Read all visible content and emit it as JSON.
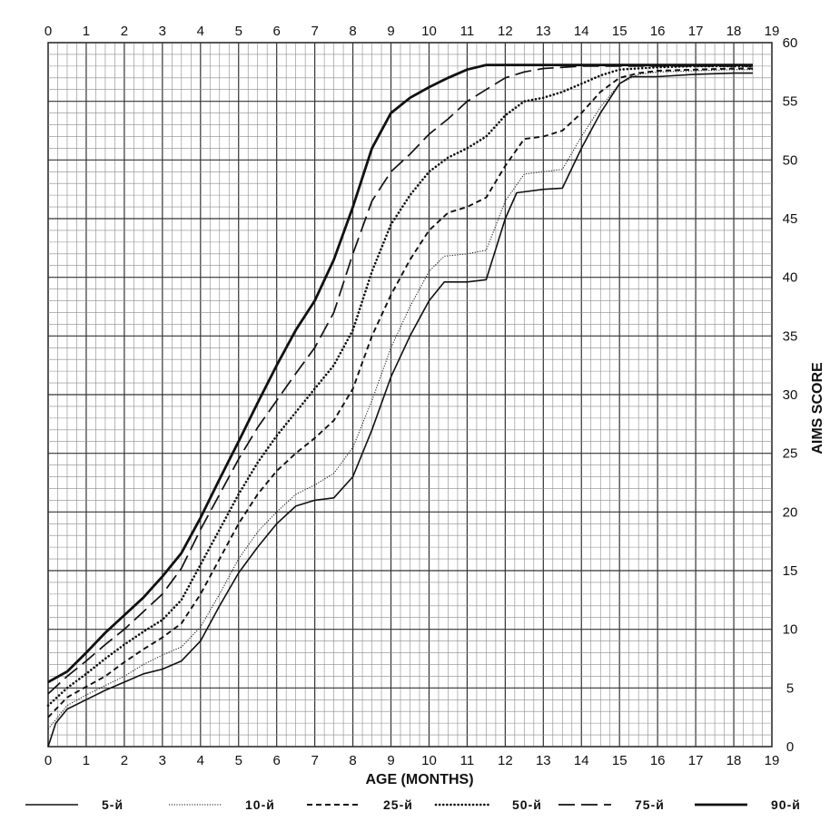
{
  "chart_data": {
    "type": "line",
    "xlabel": "AGE (MONTHS)",
    "ylabel": "AIMS SCORE",
    "xlim": [
      0,
      19
    ],
    "ylim": [
      0,
      60
    ],
    "x_ticks": [
      0,
      1,
      2,
      3,
      4,
      5,
      6,
      7,
      8,
      9,
      10,
      11,
      12,
      13,
      14,
      15,
      16,
      17,
      18,
      19
    ],
    "y_ticks": [
      0,
      5,
      10,
      15,
      20,
      25,
      30,
      35,
      40,
      45,
      50,
      55,
      60
    ],
    "grid": true,
    "legend_position": "bottom",
    "series": [
      {
        "name": "5-й",
        "style": "solid-thin",
        "points": [
          [
            0,
            0
          ],
          [
            0.2,
            2
          ],
          [
            0.5,
            3.2
          ],
          [
            1,
            4
          ],
          [
            1.5,
            4.8
          ],
          [
            2,
            5.5
          ],
          [
            2.5,
            6.2
          ],
          [
            3,
            6.6
          ],
          [
            3.5,
            7.3
          ],
          [
            4,
            9
          ],
          [
            4.5,
            12
          ],
          [
            5,
            14.8
          ],
          [
            5.5,
            17
          ],
          [
            6,
            19
          ],
          [
            6.5,
            20.5
          ],
          [
            7,
            21
          ],
          [
            7.5,
            21.2
          ],
          [
            8,
            23
          ],
          [
            8.5,
            27
          ],
          [
            9,
            31.5
          ],
          [
            9.5,
            35
          ],
          [
            10,
            38
          ],
          [
            10.4,
            39.6
          ],
          [
            11,
            39.6
          ],
          [
            11.5,
            39.8
          ],
          [
            12,
            45
          ],
          [
            12.3,
            47.2
          ],
          [
            13,
            47.5
          ],
          [
            13.5,
            47.6
          ],
          [
            14,
            51
          ],
          [
            14.5,
            54
          ],
          [
            15,
            56.5
          ],
          [
            15.3,
            57.1
          ],
          [
            16,
            57.1
          ],
          [
            17,
            57.3
          ],
          [
            18,
            57.4
          ],
          [
            18.5,
            57.4
          ]
        ]
      },
      {
        "name": "10-й",
        "style": "dotted-fine",
        "points": [
          [
            0,
            1.5
          ],
          [
            0.5,
            3.5
          ],
          [
            1,
            4.4
          ],
          [
            1.5,
            5.2
          ],
          [
            2,
            6
          ],
          [
            2.5,
            7
          ],
          [
            3,
            7.8
          ],
          [
            3.5,
            8.5
          ],
          [
            4,
            10.2
          ],
          [
            4.5,
            13
          ],
          [
            5,
            16
          ],
          [
            5.5,
            18.3
          ],
          [
            6,
            20
          ],
          [
            6.5,
            21.5
          ],
          [
            7,
            22.3
          ],
          [
            7.5,
            23.3
          ],
          [
            8,
            25.5
          ],
          [
            8.5,
            29.5
          ],
          [
            9,
            34
          ],
          [
            9.5,
            37.5
          ],
          [
            10,
            40.5
          ],
          [
            10.4,
            41.8
          ],
          [
            11,
            42
          ],
          [
            11.5,
            42.3
          ],
          [
            12,
            46.5
          ],
          [
            12.5,
            48.8
          ],
          [
            13,
            49
          ],
          [
            13.5,
            49.2
          ],
          [
            14,
            52
          ],
          [
            14.5,
            54.5
          ],
          [
            15,
            56.5
          ],
          [
            15.5,
            57.3
          ],
          [
            16,
            57.5
          ],
          [
            17,
            57.6
          ],
          [
            18,
            57.7
          ],
          [
            18.5,
            57.7
          ]
        ]
      },
      {
        "name": "25-й",
        "style": "dashed-short",
        "points": [
          [
            0,
            2.5
          ],
          [
            0.5,
            4.2
          ],
          [
            1,
            5.1
          ],
          [
            1.5,
            6
          ],
          [
            2,
            7.2
          ],
          [
            2.5,
            8.3
          ],
          [
            3,
            9.3
          ],
          [
            3.5,
            10.5
          ],
          [
            4,
            13
          ],
          [
            4.5,
            16
          ],
          [
            5,
            19
          ],
          [
            5.5,
            21.5
          ],
          [
            6,
            23.5
          ],
          [
            6.5,
            25
          ],
          [
            7,
            26.3
          ],
          [
            7.5,
            27.8
          ],
          [
            8,
            30.5
          ],
          [
            8.5,
            35
          ],
          [
            9,
            38.5
          ],
          [
            9.5,
            41.5
          ],
          [
            10,
            44
          ],
          [
            10.5,
            45.5
          ],
          [
            11,
            46
          ],
          [
            11.5,
            46.8
          ],
          [
            12,
            49.5
          ],
          [
            12.5,
            51.8
          ],
          [
            13,
            52
          ],
          [
            13.5,
            52.5
          ],
          [
            14,
            54
          ],
          [
            14.5,
            55.8
          ],
          [
            15,
            57
          ],
          [
            15.5,
            57.4
          ],
          [
            16,
            57.6
          ],
          [
            17,
            57.7
          ],
          [
            18,
            57.8
          ],
          [
            18.5,
            57.8
          ]
        ]
      },
      {
        "name": "50-й",
        "style": "dotted-bold",
        "points": [
          [
            0,
            3.5
          ],
          [
            0.5,
            5
          ],
          [
            1,
            6.2
          ],
          [
            1.5,
            7.5
          ],
          [
            2,
            8.7
          ],
          [
            2.5,
            9.8
          ],
          [
            3,
            10.8
          ],
          [
            3.5,
            12.5
          ],
          [
            4,
            15.5
          ],
          [
            4.5,
            18.5
          ],
          [
            5,
            21.5
          ],
          [
            5.5,
            24.2
          ],
          [
            6,
            26.5
          ],
          [
            6.5,
            28.5
          ],
          [
            7,
            30.5
          ],
          [
            7.5,
            32.5
          ],
          [
            8,
            35.5
          ],
          [
            8.5,
            40.5
          ],
          [
            9,
            44.5
          ],
          [
            9.5,
            47
          ],
          [
            10,
            49
          ],
          [
            10.5,
            50.2
          ],
          [
            11,
            51
          ],
          [
            11.5,
            52
          ],
          [
            12,
            53.8
          ],
          [
            12.5,
            55
          ],
          [
            13,
            55.3
          ],
          [
            13.5,
            55.8
          ],
          [
            14,
            56.5
          ],
          [
            14.5,
            57.2
          ],
          [
            15,
            57.7
          ],
          [
            16,
            57.9
          ],
          [
            17,
            58
          ],
          [
            18,
            58
          ],
          [
            18.5,
            58
          ]
        ]
      },
      {
        "name": "75-й",
        "style": "dashed-long",
        "points": [
          [
            0,
            4.5
          ],
          [
            0.5,
            6
          ],
          [
            1,
            7.3
          ],
          [
            1.5,
            8.7
          ],
          [
            2,
            10
          ],
          [
            2.5,
            11.5
          ],
          [
            3,
            13
          ],
          [
            3.5,
            15.2
          ],
          [
            4,
            18.5
          ],
          [
            4.5,
            21.5
          ],
          [
            5,
            24.5
          ],
          [
            5.5,
            27.2
          ],
          [
            6,
            29.5
          ],
          [
            6.5,
            31.8
          ],
          [
            7,
            34
          ],
          [
            7.5,
            37
          ],
          [
            8,
            42
          ],
          [
            8.5,
            46.5
          ],
          [
            9,
            49
          ],
          [
            9.5,
            50.5
          ],
          [
            10,
            52.2
          ],
          [
            10.5,
            53.5
          ],
          [
            11,
            55
          ],
          [
            11.5,
            56
          ],
          [
            12,
            57
          ],
          [
            12.5,
            57.5
          ],
          [
            13,
            57.8
          ],
          [
            14,
            58
          ],
          [
            15,
            58
          ],
          [
            16,
            58
          ],
          [
            17,
            58
          ],
          [
            18,
            58
          ],
          [
            18.5,
            58
          ]
        ]
      },
      {
        "name": "90-й",
        "style": "solid-thick",
        "points": [
          [
            0,
            5.5
          ],
          [
            0.5,
            6.4
          ],
          [
            1,
            8
          ],
          [
            1.5,
            9.7
          ],
          [
            2,
            11.2
          ],
          [
            2.5,
            12.7
          ],
          [
            3,
            14.5
          ],
          [
            3.5,
            16.5
          ],
          [
            4,
            19.5
          ],
          [
            4.5,
            22.8
          ],
          [
            5,
            26
          ],
          [
            5.5,
            29.3
          ],
          [
            6,
            32.5
          ],
          [
            6.5,
            35.5
          ],
          [
            7,
            38
          ],
          [
            7.5,
            41.5
          ],
          [
            8,
            46
          ],
          [
            8.5,
            51
          ],
          [
            9,
            54
          ],
          [
            9.5,
            55.3
          ],
          [
            10,
            56.2
          ],
          [
            10.5,
            57
          ],
          [
            11,
            57.7
          ],
          [
            11.5,
            58.1
          ],
          [
            12,
            58.1
          ],
          [
            13,
            58.1
          ],
          [
            14,
            58.1
          ],
          [
            15,
            58.1
          ],
          [
            16,
            58.1
          ],
          [
            17,
            58.1
          ],
          [
            18,
            58.1
          ],
          [
            18.5,
            58.1
          ]
        ]
      }
    ]
  }
}
